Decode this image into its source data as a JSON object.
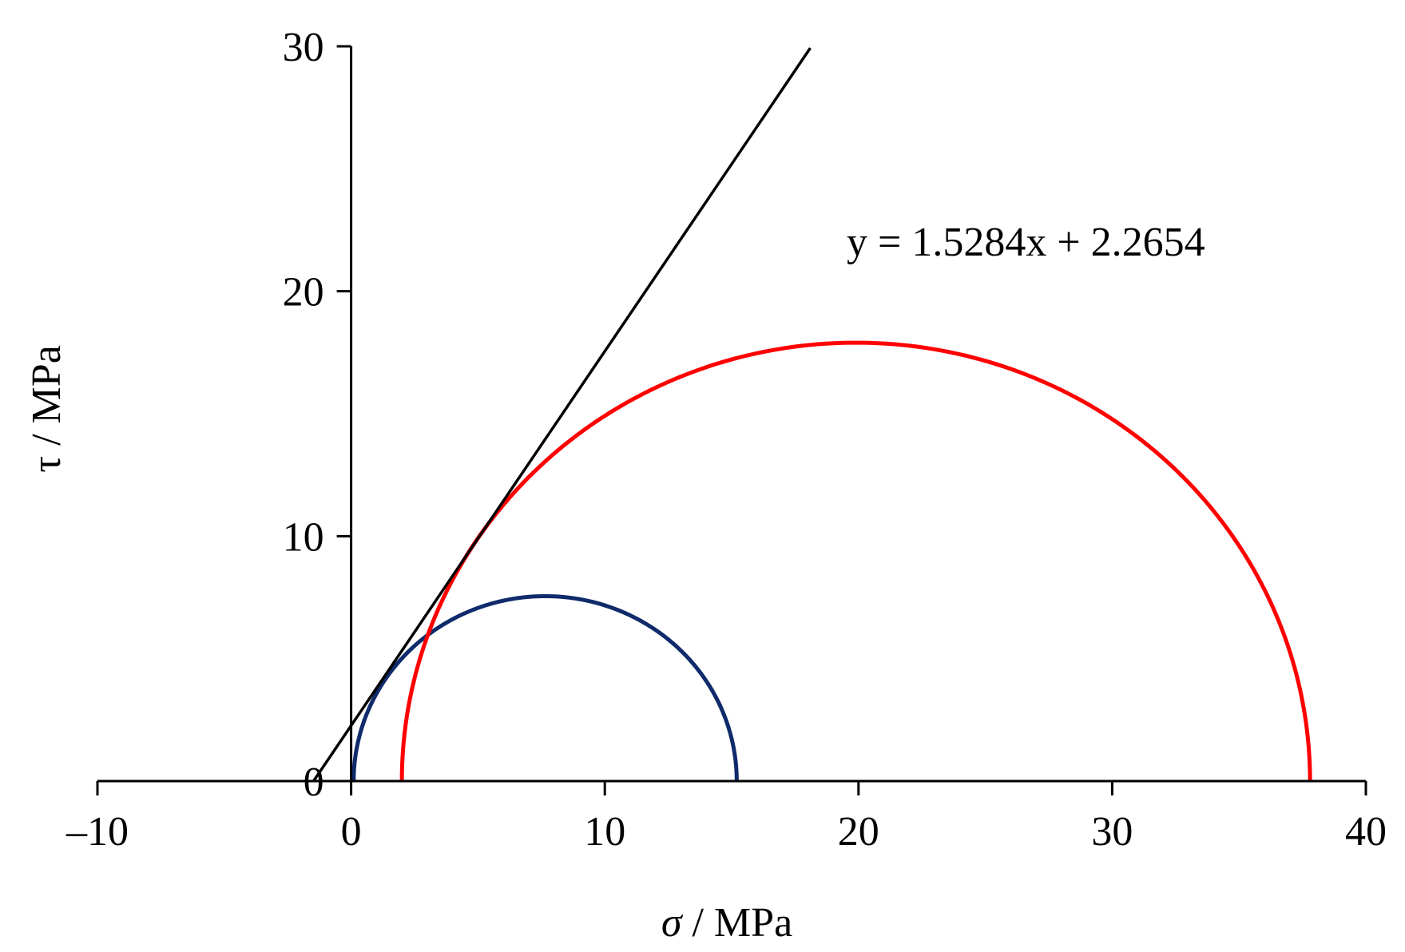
{
  "chart_data": {
    "type": "line",
    "title": "",
    "xlabel": "σ / MPa",
    "ylabel": "τ / MPa",
    "xlim": [
      -10,
      40
    ],
    "ylim": [
      0,
      30
    ],
    "x_ticks": [
      -10,
      0,
      10,
      20,
      30,
      40
    ],
    "x_tick_labels": [
      "–10",
      "0",
      "10",
      "20",
      "30",
      "40"
    ],
    "y_ticks": [
      0,
      10,
      20,
      30
    ],
    "y_tick_labels": [
      "0",
      "10",
      "20",
      "30"
    ],
    "grid": false,
    "legend": "none",
    "series": [
      {
        "kind": "mohr-circle",
        "sigma_min": 0.1,
        "sigma_max": 15.2,
        "color": "#0f2b6b"
      },
      {
        "kind": "mohr-circle",
        "sigma_min": 2.0,
        "sigma_max": 37.8,
        "color": "#ff0000"
      },
      {
        "kind": "envelope-line",
        "slope": 1.5284,
        "intercept": 2.2654,
        "x_range": [
          -1.48,
          18.1
        ],
        "color": "#000000"
      }
    ],
    "annotations": [
      {
        "text": "y = 1.5284x + 2.2654"
      }
    ]
  }
}
